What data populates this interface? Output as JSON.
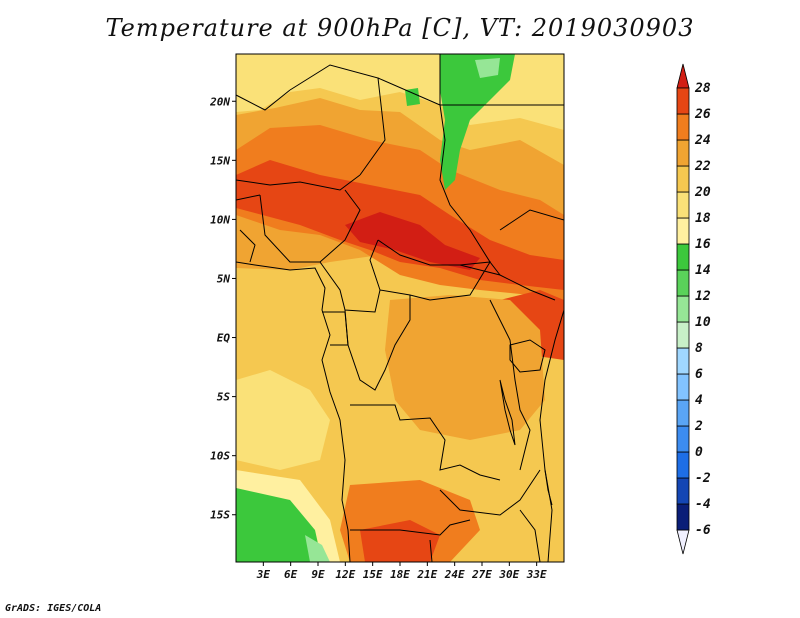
{
  "title": "Temperature at 900hPa [C], VT: 2019030903",
  "credit": "GrADS: IGES/COLA",
  "map": {
    "lon_range": [
      0,
      36
    ],
    "lat_range": [
      -19,
      24
    ],
    "lon_ticks": [
      {
        "lon": 3,
        "label": "3E"
      },
      {
        "lon": 6,
        "label": "6E"
      },
      {
        "lon": 9,
        "label": "9E"
      },
      {
        "lon": 12,
        "label": "12E"
      },
      {
        "lon": 15,
        "label": "15E"
      },
      {
        "lon": 18,
        "label": "18E"
      },
      {
        "lon": 21,
        "label": "21E"
      },
      {
        "lon": 24,
        "label": "24E"
      },
      {
        "lon": 27,
        "label": "27E"
      },
      {
        "lon": 30,
        "label": "30E"
      },
      {
        "lon": 33,
        "label": "33E"
      }
    ],
    "lat_ticks": [
      {
        "lat": 20,
        "label": "20N"
      },
      {
        "lat": 15,
        "label": "15N"
      },
      {
        "lat": 10,
        "label": "10N"
      },
      {
        "lat": 5,
        "label": "5N"
      },
      {
        "lat": 0,
        "label": "EQ"
      },
      {
        "lat": -5,
        "label": "5S"
      },
      {
        "lat": -10,
        "label": "10S"
      },
      {
        "lat": -15,
        "label": "15S"
      }
    ]
  },
  "colorbar": {
    "levels": [
      "28",
      "26",
      "24",
      "22",
      "20",
      "18",
      "16",
      "14",
      "12",
      "10",
      "8",
      "6",
      "4",
      "2",
      "0",
      "-2",
      "-4",
      "-6"
    ],
    "colors": [
      "#f0f0ff",
      "#0a1e78",
      "#1446b4",
      "#1e6ee6",
      "#3c8cf0",
      "#5aa5f5",
      "#82c3ff",
      "#a0d7ff",
      "#c8f0c8",
      "#96e696",
      "#5ad25a",
      "#3cc83c",
      "#fff0a0",
      "#fae178",
      "#f5c850",
      "#f0a432",
      "#f07d1e",
      "#e64614",
      "#d21e14"
    ]
  }
}
